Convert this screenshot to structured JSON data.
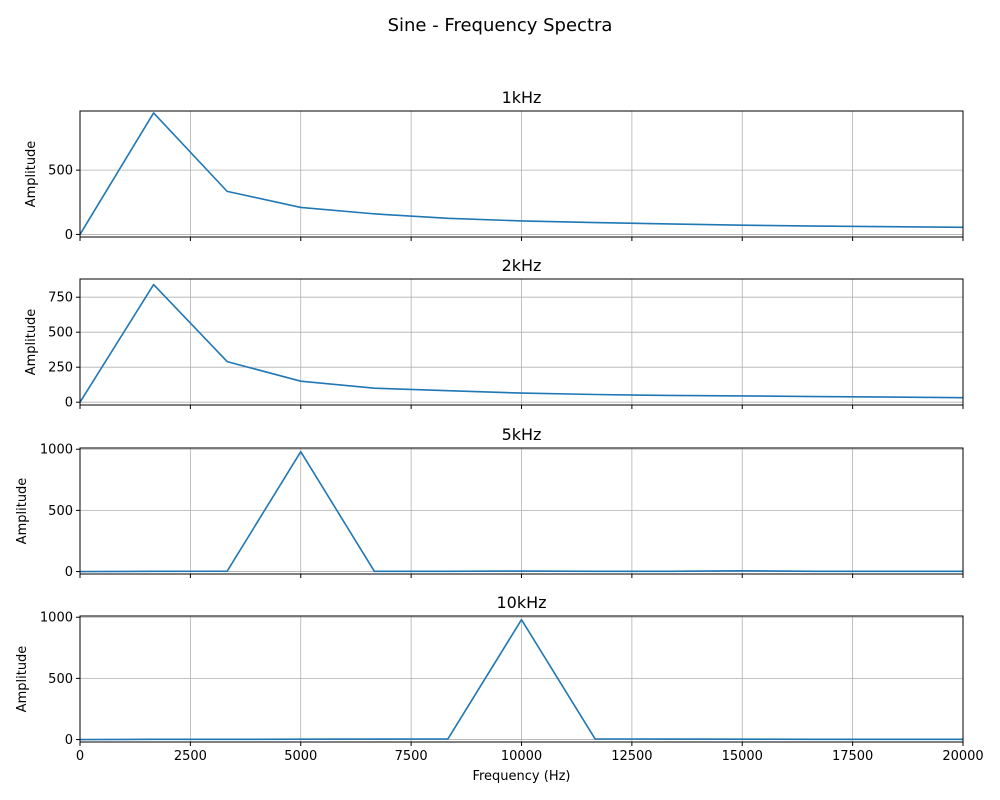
{
  "figure": {
    "title": "Sine - Frequency Spectra"
  },
  "colors": {
    "series": "#1f77b4",
    "grid": "#b0b0b0"
  },
  "chart_data": [
    {
      "type": "line",
      "title": "1kHz",
      "xlabel": "",
      "ylabel": "Amplitude",
      "xlim": [
        0,
        20000
      ],
      "ylim": [
        -20,
        960
      ],
      "xticks": [
        0,
        2500,
        5000,
        7500,
        10000,
        12500,
        15000,
        17500,
        20000
      ],
      "yticks": [
        0,
        500
      ],
      "show_xtick_labels": false,
      "grid": true,
      "x": [
        0,
        1667,
        3333,
        5000,
        6667,
        8333,
        10000,
        11667,
        13333,
        15000,
        16667,
        18333,
        20000
      ],
      "y": [
        0,
        945,
        335,
        210,
        160,
        125,
        105,
        92,
        82,
        72,
        65,
        60,
        55
      ]
    },
    {
      "type": "line",
      "title": "2kHz",
      "xlabel": "",
      "ylabel": "Amplitude",
      "xlim": [
        0,
        20000
      ],
      "ylim": [
        -20,
        880
      ],
      "xticks": [
        0,
        2500,
        5000,
        7500,
        10000,
        12500,
        15000,
        17500,
        20000
      ],
      "yticks": [
        0,
        250,
        500,
        750
      ],
      "show_xtick_labels": false,
      "grid": true,
      "x": [
        0,
        1667,
        3333,
        5000,
        6667,
        8333,
        10000,
        11667,
        13333,
        15000,
        16667,
        18333,
        20000
      ],
      "y": [
        0,
        840,
        290,
        150,
        100,
        82,
        65,
        55,
        48,
        45,
        40,
        37,
        32
      ]
    },
    {
      "type": "line",
      "title": "5kHz",
      "xlabel": "",
      "ylabel": "Amplitude",
      "xlim": [
        0,
        20000
      ],
      "ylim": [
        -20,
        1010
      ],
      "xticks": [
        0,
        2500,
        5000,
        7500,
        10000,
        12500,
        15000,
        17500,
        20000
      ],
      "yticks": [
        0,
        500,
        1000
      ],
      "show_xtick_labels": false,
      "grid": true,
      "x": [
        0,
        1667,
        3333,
        5000,
        6667,
        8333,
        10000,
        11667,
        13333,
        15000,
        16667,
        18333,
        20000
      ],
      "y": [
        0,
        2,
        3,
        980,
        2,
        2,
        4,
        2,
        2,
        6,
        2,
        2,
        2
      ]
    },
    {
      "type": "line",
      "title": "10kHz",
      "xlabel": "Frequency (Hz)",
      "ylabel": "Amplitude",
      "xlim": [
        0,
        20000
      ],
      "ylim": [
        -20,
        1010
      ],
      "xticks": [
        0,
        2500,
        5000,
        7500,
        10000,
        12500,
        15000,
        17500,
        20000
      ],
      "yticks": [
        0,
        500,
        1000
      ],
      "show_xtick_labels": true,
      "grid": true,
      "x": [
        0,
        1667,
        3333,
        5000,
        6667,
        8333,
        10000,
        11667,
        13333,
        15000,
        16667,
        18333,
        20000
      ],
      "y": [
        0,
        2,
        2,
        3,
        4,
        5,
        980,
        5,
        4,
        3,
        2,
        2,
        2
      ]
    }
  ]
}
